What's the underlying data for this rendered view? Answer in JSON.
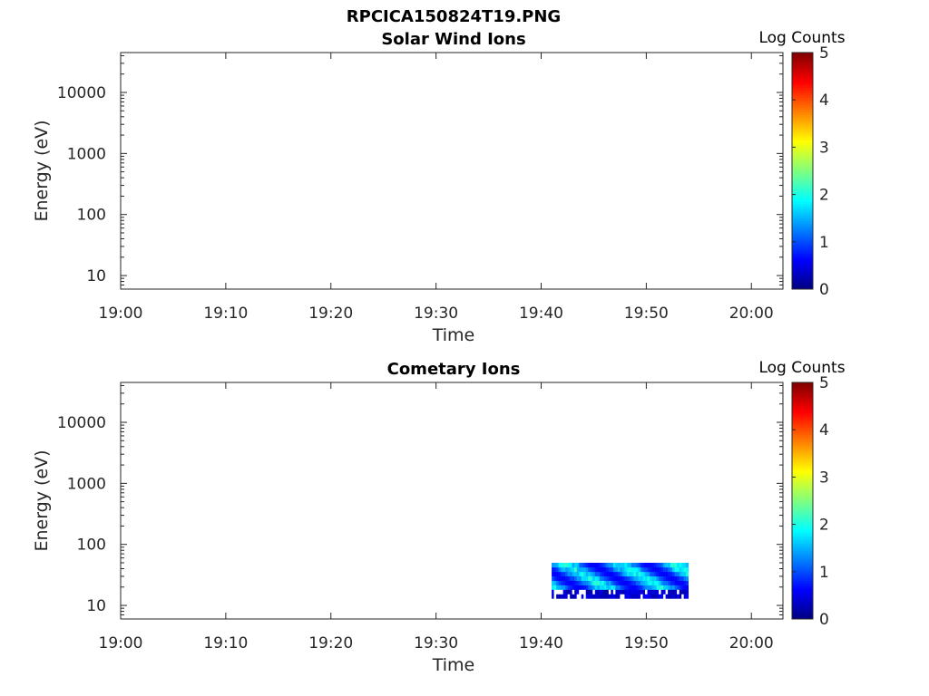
{
  "figure": {
    "title": "RPCICA150824T19.PNG"
  },
  "chart_data": [
    {
      "type": "heatmap",
      "title": "Solar Wind Ions",
      "xlabel": "Time",
      "ylabel": "Energy (eV)",
      "y_scale": "log",
      "ylim": [
        6,
        45000
      ],
      "xlim": [
        "19:00",
        "20:03"
      ],
      "x_tick_labels": [
        "19:00",
        "19:10",
        "19:20",
        "19:30",
        "19:40",
        "19:50",
        "20:00"
      ],
      "y_tick_labels": [
        "10",
        "100",
        "1000",
        "10000"
      ],
      "colorbar": {
        "label": "Log Counts",
        "range": [
          0,
          5
        ],
        "tick_labels": [
          "0",
          "1",
          "2",
          "3",
          "4",
          "5"
        ],
        "colormap": "jet"
      },
      "data_blocks": []
    },
    {
      "type": "heatmap",
      "title": "Cometary Ions",
      "xlabel": "Time",
      "ylabel": "Energy (eV)",
      "y_scale": "log",
      "ylim": [
        6,
        45000
      ],
      "xlim": [
        "19:00",
        "20:03"
      ],
      "x_tick_labels": [
        "19:00",
        "19:10",
        "19:20",
        "19:30",
        "19:40",
        "19:50",
        "20:00"
      ],
      "y_tick_labels": [
        "10",
        "100",
        "1000",
        "10000"
      ],
      "colorbar": {
        "label": "Log Counts",
        "range": [
          0,
          5
        ],
        "tick_labels": [
          "0",
          "1",
          "2",
          "3",
          "4",
          "5"
        ],
        "colormap": "jet"
      },
      "data_blocks": [
        {
          "time_start": "19:41",
          "time_end": "19:54",
          "energy_min_eV": 13,
          "energy_max_eV": 50,
          "log_counts_range": [
            0,
            2.2
          ]
        }
      ]
    }
  ]
}
